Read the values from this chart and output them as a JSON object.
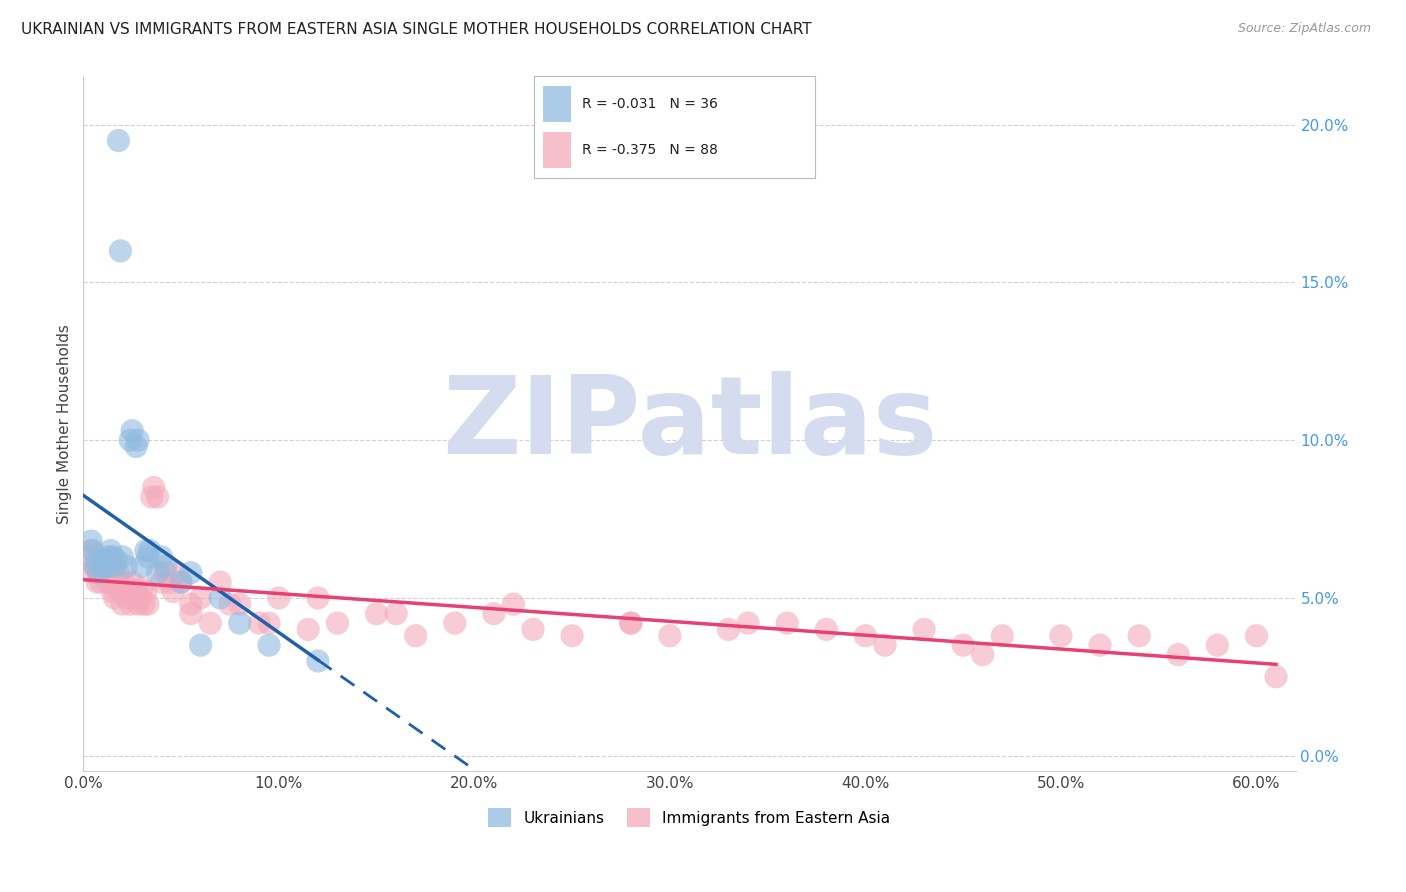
{
  "title": "UKRAINIAN VS IMMIGRANTS FROM EASTERN ASIA SINGLE MOTHER HOUSEHOLDS CORRELATION CHART",
  "source_text": "Source: ZipAtlas.com",
  "ylabel": "Single Mother Households",
  "xlim": [
    0.0,
    0.62
  ],
  "ylim": [
    -0.005,
    0.215
  ],
  "legend1_label": "R = -0.031   N = 36",
  "legend2_label": "R = -0.375   N = 88",
  "legend_label1": "Ukrainians",
  "legend_label2": "Immigrants from Eastern Asia",
  "blue_color": "#90BAE0",
  "pink_color": "#F4AABB",
  "blue_line_color": "#2060A8",
  "pink_line_color": "#E84070",
  "right_axis_color": "#4499EE",
  "watermark": "ZIPatlas",
  "watermark_color": "#D5DCF0",
  "background_color": "#FFFFFF",
  "title_fontsize": 11,
  "source_fontsize": 9,
  "ukr_x": [
    0.004,
    0.005,
    0.006,
    0.007,
    0.008,
    0.009,
    0.01,
    0.011,
    0.012,
    0.013,
    0.014,
    0.015,
    0.016,
    0.017,
    0.018,
    0.019,
    0.02,
    0.022,
    0.024,
    0.025,
    0.027,
    0.028,
    0.03,
    0.032,
    0.033,
    0.034,
    0.038,
    0.04,
    0.042,
    0.05,
    0.055,
    0.06,
    0.07,
    0.08,
    0.095,
    0.12
  ],
  "ukr_y": [
    0.068,
    0.065,
    0.06,
    0.062,
    0.058,
    0.062,
    0.06,
    0.062,
    0.06,
    0.063,
    0.065,
    0.063,
    0.06,
    0.062,
    0.195,
    0.16,
    0.063,
    0.06,
    0.1,
    0.103,
    0.098,
    0.1,
    0.06,
    0.065,
    0.063,
    0.065,
    0.058,
    0.063,
    0.06,
    0.055,
    0.058,
    0.035,
    0.05,
    0.042,
    0.035,
    0.03
  ],
  "ea_x": [
    0.003,
    0.004,
    0.005,
    0.006,
    0.007,
    0.007,
    0.008,
    0.008,
    0.009,
    0.01,
    0.01,
    0.011,
    0.012,
    0.013,
    0.013,
    0.014,
    0.015,
    0.015,
    0.016,
    0.017,
    0.018,
    0.018,
    0.019,
    0.02,
    0.02,
    0.021,
    0.022,
    0.023,
    0.024,
    0.025,
    0.026,
    0.027,
    0.028,
    0.029,
    0.03,
    0.031,
    0.032,
    0.033,
    0.035,
    0.036,
    0.038,
    0.04,
    0.042,
    0.044,
    0.046,
    0.048,
    0.05,
    0.055,
    0.06,
    0.065,
    0.07,
    0.08,
    0.09,
    0.1,
    0.115,
    0.13,
    0.15,
    0.17,
    0.19,
    0.21,
    0.23,
    0.25,
    0.28,
    0.3,
    0.33,
    0.36,
    0.4,
    0.43,
    0.45,
    0.47,
    0.5,
    0.52,
    0.54,
    0.56,
    0.58,
    0.6,
    0.61,
    0.38,
    0.41,
    0.46,
    0.34,
    0.28,
    0.22,
    0.16,
    0.12,
    0.095,
    0.075,
    0.055
  ],
  "ea_y": [
    0.063,
    0.065,
    0.058,
    0.06,
    0.055,
    0.06,
    0.058,
    0.062,
    0.055,
    0.06,
    0.062,
    0.058,
    0.055,
    0.06,
    0.062,
    0.057,
    0.052,
    0.055,
    0.05,
    0.053,
    0.055,
    0.058,
    0.052,
    0.048,
    0.053,
    0.055,
    0.05,
    0.052,
    0.048,
    0.055,
    0.05,
    0.052,
    0.048,
    0.05,
    0.053,
    0.048,
    0.052,
    0.048,
    0.082,
    0.085,
    0.082,
    0.055,
    0.058,
    0.055,
    0.052,
    0.058,
    0.055,
    0.048,
    0.05,
    0.042,
    0.055,
    0.048,
    0.042,
    0.05,
    0.04,
    0.042,
    0.045,
    0.038,
    0.042,
    0.045,
    0.04,
    0.038,
    0.042,
    0.038,
    0.04,
    0.042,
    0.038,
    0.04,
    0.035,
    0.038,
    0.038,
    0.035,
    0.038,
    0.032,
    0.035,
    0.038,
    0.025,
    0.04,
    0.035,
    0.032,
    0.042,
    0.042,
    0.048,
    0.045,
    0.05,
    0.042,
    0.048,
    0.045
  ]
}
